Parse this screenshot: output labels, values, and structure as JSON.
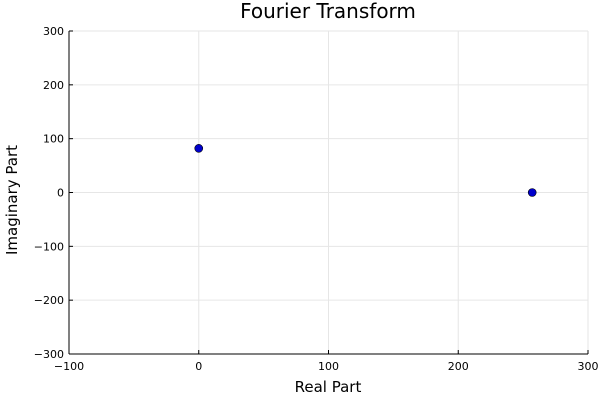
{
  "chart_data": {
    "type": "scatter",
    "title": "Fourier Transform",
    "xlabel": "Real Part",
    "ylabel": "Imaginary Part",
    "xlim": [
      -100,
      300
    ],
    "ylim": [
      -300,
      300
    ],
    "x_ticks": [
      -100,
      0,
      100,
      200,
      300
    ],
    "y_ticks": [
      -300,
      -200,
      -100,
      0,
      100,
      200,
      300
    ],
    "x_tick_labels": [
      "−100",
      "0",
      "100",
      "200",
      "300"
    ],
    "y_tick_labels": [
      "−300",
      "−200",
      "−100",
      "0",
      "100",
      "200",
      "300"
    ],
    "grid": true,
    "legend": "none",
    "series": [
      {
        "color": "#0000cc",
        "points": [
          {
            "x": 0,
            "y": 82
          },
          {
            "x": 257,
            "y": 0
          }
        ]
      }
    ]
  }
}
